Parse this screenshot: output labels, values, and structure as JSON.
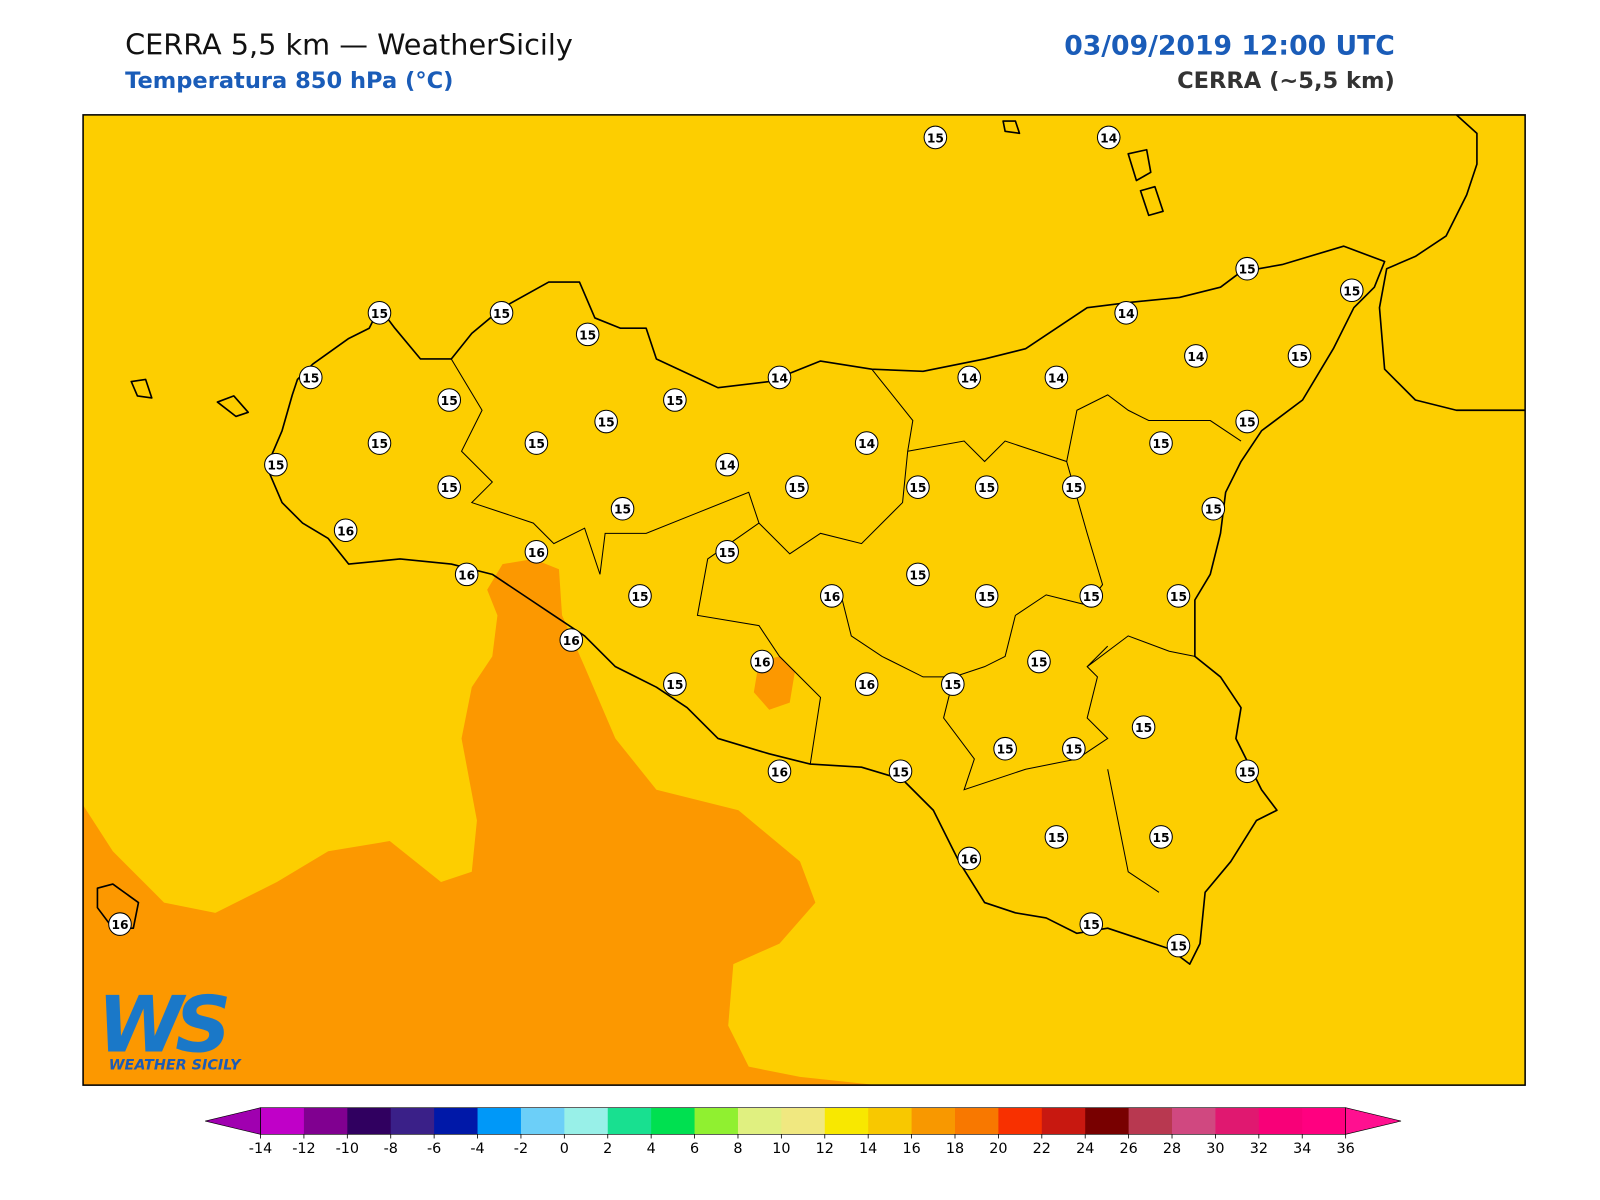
{
  "header": {
    "title": "CERRA 5,5 km — WeatherSicily",
    "subtitle": "Temperatura 850 hPa (°C)",
    "datetime": "03/09/2019 12:00 UTC",
    "model": "CERRA (~5,5 km)"
  },
  "map": {
    "background_color": "#fdce00",
    "warm_color": "#fc9800",
    "station_values": [
      15,
      14,
      15,
      15,
      15,
      15,
      15,
      14,
      15,
      14,
      14,
      14,
      14,
      15,
      15,
      15,
      15,
      15,
      15,
      15,
      14,
      15,
      15,
      14,
      15,
      15,
      15,
      15,
      15,
      15,
      15,
      16,
      16,
      15,
      16,
      15,
      15,
      16,
      15,
      15,
      15,
      16,
      15,
      16,
      15,
      16,
      15,
      15,
      15,
      15,
      16,
      15,
      15,
      15,
      15,
      16,
      15,
      15,
      16
    ]
  },
  "logo": {
    "mark": "WS",
    "name": "WEATHER SICILY"
  },
  "colorbar": {
    "ticks": [
      -14,
      -12,
      -10,
      -8,
      -6,
      -4,
      -2,
      0,
      2,
      4,
      6,
      8,
      10,
      12,
      14,
      16,
      18,
      20,
      22,
      24,
      26,
      28,
      30,
      32,
      34,
      36
    ],
    "colors": [
      "#c000c8",
      "#800090",
      "#300060",
      "#3a2088",
      "#0018a8",
      "#0098f8",
      "#6ccff8",
      "#98f0e8",
      "#18e090",
      "#00e050",
      "#90f030",
      "#e0f080",
      "#f0e880",
      "#f8e800",
      "#f8c800",
      "#f89800",
      "#f87800",
      "#f83000",
      "#c81810",
      "#780000",
      "#b83850",
      "#d04880",
      "#e01870",
      "#f80078",
      "#ff0080"
    ],
    "under_color": "#a000b0",
    "over_color": "#ff1090"
  }
}
